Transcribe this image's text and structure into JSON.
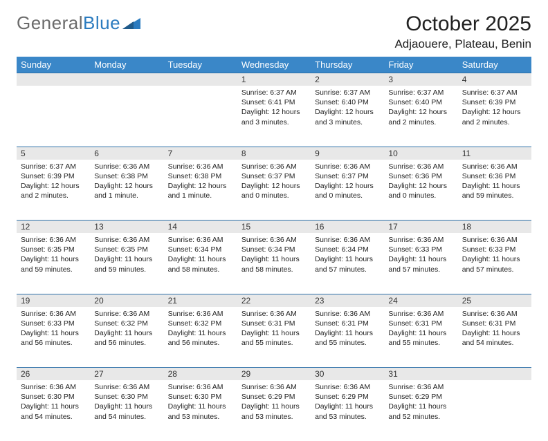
{
  "brand": {
    "part1": "General",
    "part2": "Blue"
  },
  "title": "October 2025",
  "location": "Adjaouere, Plateau, Benin",
  "dayNames": [
    "Sunday",
    "Monday",
    "Tuesday",
    "Wednesday",
    "Thursday",
    "Friday",
    "Saturday"
  ],
  "colors": {
    "headerBg": "#3a87c8",
    "dayNumBg": "#e8e8e8",
    "ruleLine": "#2b6fa8",
    "logoGray": "#6b6b6b",
    "logoBlue": "#2b7bbf"
  },
  "weeks": [
    [
      null,
      null,
      null,
      {
        "num": "1",
        "sunrise": "Sunrise: 6:37 AM",
        "sunset": "Sunset: 6:41 PM",
        "daylight": "Daylight: 12 hours and 3 minutes."
      },
      {
        "num": "2",
        "sunrise": "Sunrise: 6:37 AM",
        "sunset": "Sunset: 6:40 PM",
        "daylight": "Daylight: 12 hours and 3 minutes."
      },
      {
        "num": "3",
        "sunrise": "Sunrise: 6:37 AM",
        "sunset": "Sunset: 6:40 PM",
        "daylight": "Daylight: 12 hours and 2 minutes."
      },
      {
        "num": "4",
        "sunrise": "Sunrise: 6:37 AM",
        "sunset": "Sunset: 6:39 PM",
        "daylight": "Daylight: 12 hours and 2 minutes."
      }
    ],
    [
      {
        "num": "5",
        "sunrise": "Sunrise: 6:37 AM",
        "sunset": "Sunset: 6:39 PM",
        "daylight": "Daylight: 12 hours and 2 minutes."
      },
      {
        "num": "6",
        "sunrise": "Sunrise: 6:36 AM",
        "sunset": "Sunset: 6:38 PM",
        "daylight": "Daylight: 12 hours and 1 minute."
      },
      {
        "num": "7",
        "sunrise": "Sunrise: 6:36 AM",
        "sunset": "Sunset: 6:38 PM",
        "daylight": "Daylight: 12 hours and 1 minute."
      },
      {
        "num": "8",
        "sunrise": "Sunrise: 6:36 AM",
        "sunset": "Sunset: 6:37 PM",
        "daylight": "Daylight: 12 hours and 0 minutes."
      },
      {
        "num": "9",
        "sunrise": "Sunrise: 6:36 AM",
        "sunset": "Sunset: 6:37 PM",
        "daylight": "Daylight: 12 hours and 0 minutes."
      },
      {
        "num": "10",
        "sunrise": "Sunrise: 6:36 AM",
        "sunset": "Sunset: 6:36 PM",
        "daylight": "Daylight: 12 hours and 0 minutes."
      },
      {
        "num": "11",
        "sunrise": "Sunrise: 6:36 AM",
        "sunset": "Sunset: 6:36 PM",
        "daylight": "Daylight: 11 hours and 59 minutes."
      }
    ],
    [
      {
        "num": "12",
        "sunrise": "Sunrise: 6:36 AM",
        "sunset": "Sunset: 6:35 PM",
        "daylight": "Daylight: 11 hours and 59 minutes."
      },
      {
        "num": "13",
        "sunrise": "Sunrise: 6:36 AM",
        "sunset": "Sunset: 6:35 PM",
        "daylight": "Daylight: 11 hours and 59 minutes."
      },
      {
        "num": "14",
        "sunrise": "Sunrise: 6:36 AM",
        "sunset": "Sunset: 6:34 PM",
        "daylight": "Daylight: 11 hours and 58 minutes."
      },
      {
        "num": "15",
        "sunrise": "Sunrise: 6:36 AM",
        "sunset": "Sunset: 6:34 PM",
        "daylight": "Daylight: 11 hours and 58 minutes."
      },
      {
        "num": "16",
        "sunrise": "Sunrise: 6:36 AM",
        "sunset": "Sunset: 6:34 PM",
        "daylight": "Daylight: 11 hours and 57 minutes."
      },
      {
        "num": "17",
        "sunrise": "Sunrise: 6:36 AM",
        "sunset": "Sunset: 6:33 PM",
        "daylight": "Daylight: 11 hours and 57 minutes."
      },
      {
        "num": "18",
        "sunrise": "Sunrise: 6:36 AM",
        "sunset": "Sunset: 6:33 PM",
        "daylight": "Daylight: 11 hours and 57 minutes."
      }
    ],
    [
      {
        "num": "19",
        "sunrise": "Sunrise: 6:36 AM",
        "sunset": "Sunset: 6:33 PM",
        "daylight": "Daylight: 11 hours and 56 minutes."
      },
      {
        "num": "20",
        "sunrise": "Sunrise: 6:36 AM",
        "sunset": "Sunset: 6:32 PM",
        "daylight": "Daylight: 11 hours and 56 minutes."
      },
      {
        "num": "21",
        "sunrise": "Sunrise: 6:36 AM",
        "sunset": "Sunset: 6:32 PM",
        "daylight": "Daylight: 11 hours and 56 minutes."
      },
      {
        "num": "22",
        "sunrise": "Sunrise: 6:36 AM",
        "sunset": "Sunset: 6:31 PM",
        "daylight": "Daylight: 11 hours and 55 minutes."
      },
      {
        "num": "23",
        "sunrise": "Sunrise: 6:36 AM",
        "sunset": "Sunset: 6:31 PM",
        "daylight": "Daylight: 11 hours and 55 minutes."
      },
      {
        "num": "24",
        "sunrise": "Sunrise: 6:36 AM",
        "sunset": "Sunset: 6:31 PM",
        "daylight": "Daylight: 11 hours and 55 minutes."
      },
      {
        "num": "25",
        "sunrise": "Sunrise: 6:36 AM",
        "sunset": "Sunset: 6:31 PM",
        "daylight": "Daylight: 11 hours and 54 minutes."
      }
    ],
    [
      {
        "num": "26",
        "sunrise": "Sunrise: 6:36 AM",
        "sunset": "Sunset: 6:30 PM",
        "daylight": "Daylight: 11 hours and 54 minutes."
      },
      {
        "num": "27",
        "sunrise": "Sunrise: 6:36 AM",
        "sunset": "Sunset: 6:30 PM",
        "daylight": "Daylight: 11 hours and 54 minutes."
      },
      {
        "num": "28",
        "sunrise": "Sunrise: 6:36 AM",
        "sunset": "Sunset: 6:30 PM",
        "daylight": "Daylight: 11 hours and 53 minutes."
      },
      {
        "num": "29",
        "sunrise": "Sunrise: 6:36 AM",
        "sunset": "Sunset: 6:29 PM",
        "daylight": "Daylight: 11 hours and 53 minutes."
      },
      {
        "num": "30",
        "sunrise": "Sunrise: 6:36 AM",
        "sunset": "Sunset: 6:29 PM",
        "daylight": "Daylight: 11 hours and 53 minutes."
      },
      {
        "num": "31",
        "sunrise": "Sunrise: 6:36 AM",
        "sunset": "Sunset: 6:29 PM",
        "daylight": "Daylight: 11 hours and 52 minutes."
      },
      null
    ]
  ]
}
